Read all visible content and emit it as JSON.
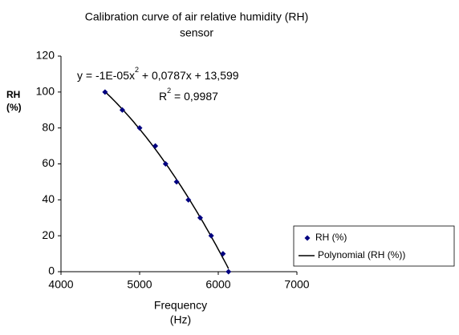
{
  "chart_data": {
    "type": "scatter",
    "title": [
      "Calibration curve of air relative humidity (RH)",
      "sensor"
    ],
    "x_label": [
      "Frequency",
      "(Hz)"
    ],
    "y_label": [
      "RH",
      "(%)"
    ],
    "x": [
      4560,
      4780,
      5000,
      5200,
      5330,
      5470,
      5620,
      5770,
      5910,
      6060,
      6130
    ],
    "series": [
      {
        "name": "RH (%)",
        "color": "#000080",
        "values": [
          100,
          90,
          80,
          70,
          60,
          50,
          40,
          30,
          20,
          10,
          0
        ]
      },
      {
        "name": "Polynomial (RH (%))",
        "color": "#000000",
        "fit": "polynomial"
      }
    ],
    "equation": [
      "y = -1E-05x",
      "2",
      " + 0,0787x + 13,599"
    ],
    "r_squared": [
      "R",
      "2",
      " = 0,9987"
    ],
    "xlim": [
      4000,
      7000
    ],
    "xticks": [
      4000,
      5000,
      6000,
      7000
    ],
    "ylim": [
      0,
      120
    ],
    "yticks": [
      0,
      20,
      40,
      60,
      80,
      100,
      120
    ]
  }
}
